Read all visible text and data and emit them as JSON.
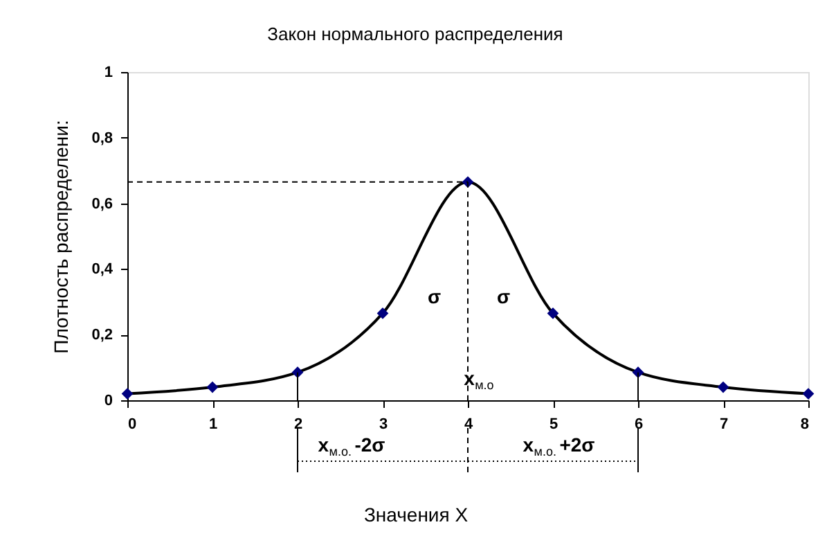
{
  "chart_data": {
    "type": "line",
    "title": "Закон нормального распределения",
    "xlabel": "Значения X",
    "ylabel": "Плотность распределени:",
    "x": [
      0,
      1,
      2,
      3,
      4,
      5,
      6,
      7,
      8
    ],
    "series": [
      {
        "color": "#000080",
        "values": [
          0.02,
          0.04,
          0.085,
          0.265,
          0.665,
          0.265,
          0.085,
          0.04,
          0.02
        ]
      }
    ],
    "marker": "diamond",
    "grid": false,
    "xlim": [
      0,
      8
    ],
    "xticks": [
      0,
      1,
      2,
      3,
      4,
      5,
      6,
      7,
      8
    ],
    "ylim": [
      0,
      1
    ],
    "yticks": [
      0,
      {
        "value": 0.2,
        "label": "0,2"
      },
      {
        "value": 0.4,
        "label": "0,4"
      },
      {
        "value": 0.6,
        "label": "0,6"
      },
      {
        "value": 0.8,
        "label": "0,8"
      },
      1
    ],
    "ref_lines": [
      {
        "axis": "y",
        "value": 0.665,
        "line_style": "dashed"
      },
      {
        "axis": "x",
        "value": 4,
        "line_style": "dashed"
      },
      {
        "axis": "x",
        "value": 2,
        "line_style": "solid"
      },
      {
        "axis": "x",
        "value": 6,
        "line_style": "solid"
      }
    ],
    "annotations": [
      "σ",
      "σ",
      "x$_{м.о}$",
      "x$_{м.о.}$-2σ",
      "x$_{м.о.}$+2σ"
    ]
  }
}
